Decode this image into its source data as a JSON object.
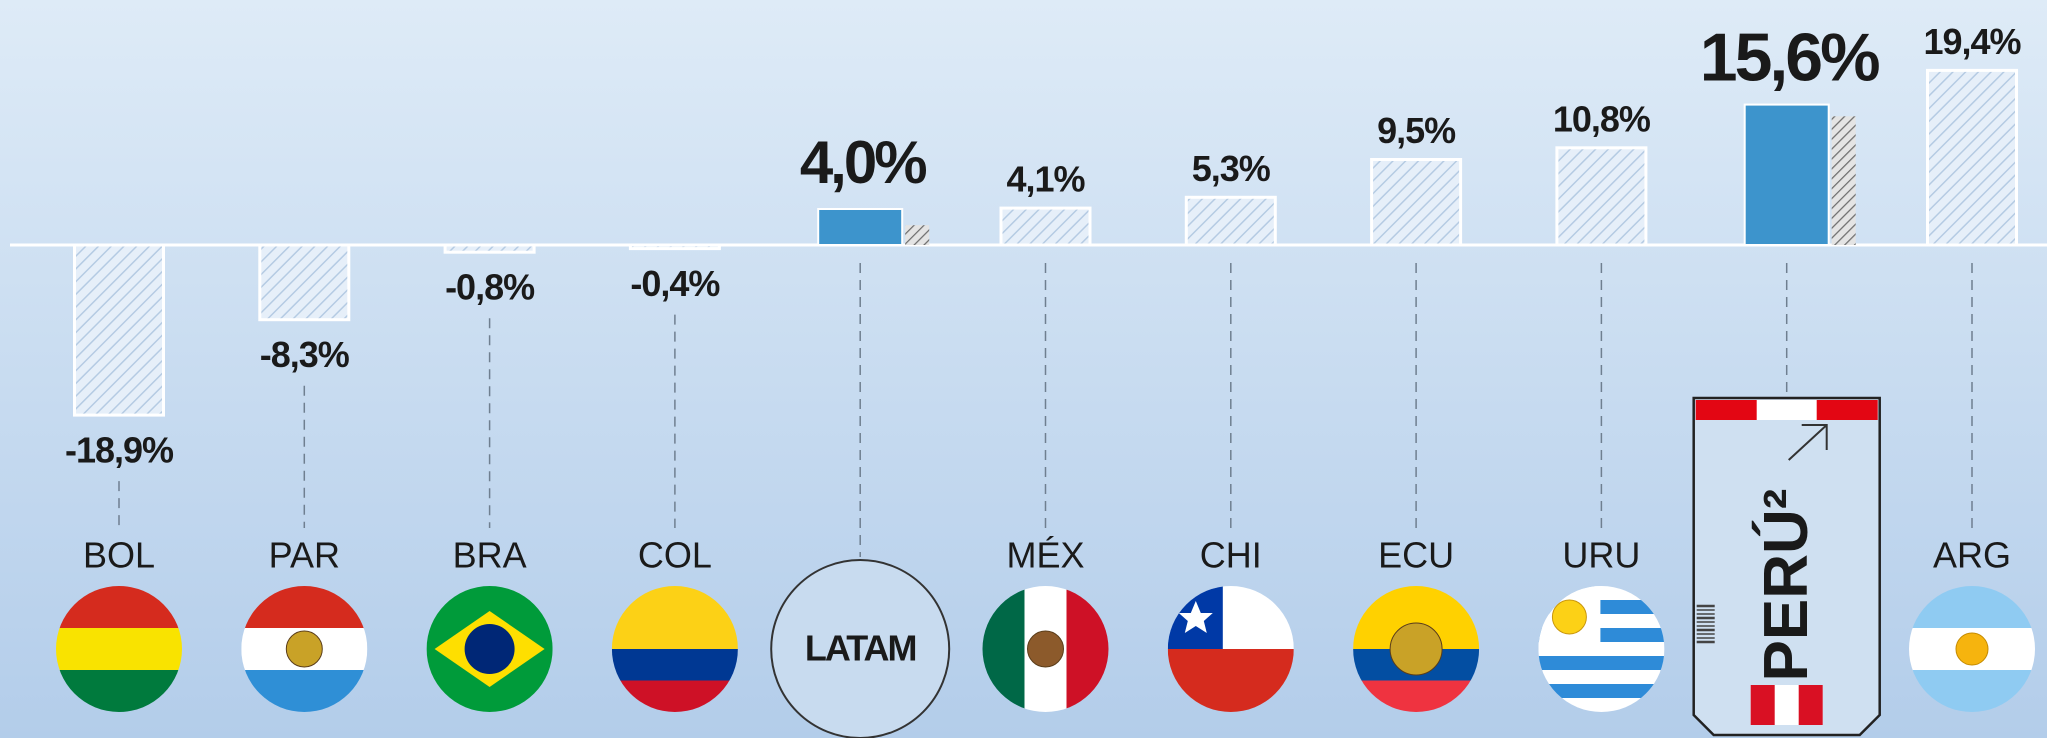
{
  "chart_data": {
    "type": "bar",
    "categories": [
      "BOL",
      "PAR",
      "BRA",
      "COL",
      "LATAM",
      "MÉX",
      "CHI",
      "ECU",
      "URU",
      "PERÚ²",
      "ARG"
    ],
    "values": [
      -18.9,
      -8.3,
      -0.8,
      -0.4,
      4.0,
      4.1,
      5.3,
      9.5,
      10.8,
      15.6,
      19.4
    ],
    "value_labels": [
      "-18,9%",
      "-8,3%",
      "-0,8%",
      "-0,4%",
      "4,0%",
      "4,1%",
      "5,3%",
      "9,5%",
      "10,8%",
      "15,6%",
      "19,4%"
    ],
    "secondary_values": [
      null,
      null,
      null,
      null,
      2.2,
      null,
      null,
      null,
      null,
      14.3,
      null
    ],
    "highlight": [
      false,
      false,
      false,
      false,
      true,
      false,
      false,
      false,
      false,
      true,
      false
    ],
    "color": "#3d94cc"
  }
}
